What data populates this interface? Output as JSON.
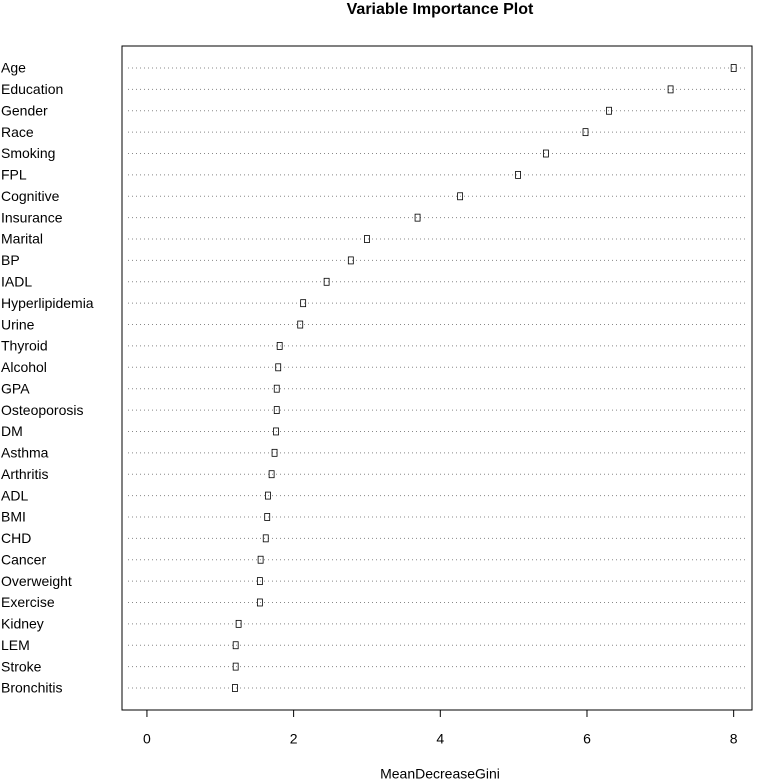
{
  "chart_data": {
    "type": "dot",
    "title": "Variable Importance Plot",
    "x_label": "MeanDecreaseGini",
    "categories": [
      "Age",
      "Education",
      "Gender",
      "Race",
      "Smoking",
      "FPL",
      "Cognitive",
      "Insurance",
      "Marital",
      "BP",
      "IADL",
      "Hyperlipidemia",
      "Urine",
      "Thyroid",
      "Alcohol",
      "GPA",
      "Osteoporosis",
      "DM",
      "Asthma",
      "Arthritis",
      "ADL",
      "BMI",
      "CHD",
      "Cancer",
      "Overweight",
      "Exercise",
      "Kidney",
      "LEM",
      "Stroke",
      "Bronchitis"
    ],
    "values": [
      8.0,
      7.14,
      6.3,
      5.98,
      5.44,
      5.06,
      4.27,
      3.69,
      3.0,
      2.78,
      2.45,
      2.13,
      2.09,
      1.81,
      1.79,
      1.77,
      1.77,
      1.76,
      1.74,
      1.7,
      1.65,
      1.64,
      1.62,
      1.55,
      1.54,
      1.54,
      1.25,
      1.21,
      1.21,
      1.2
    ],
    "color": "#000000",
    "xlim": [
      -0.34,
      8.25
    ],
    "xticks": [
      0,
      2,
      4,
      6,
      8
    ]
  }
}
